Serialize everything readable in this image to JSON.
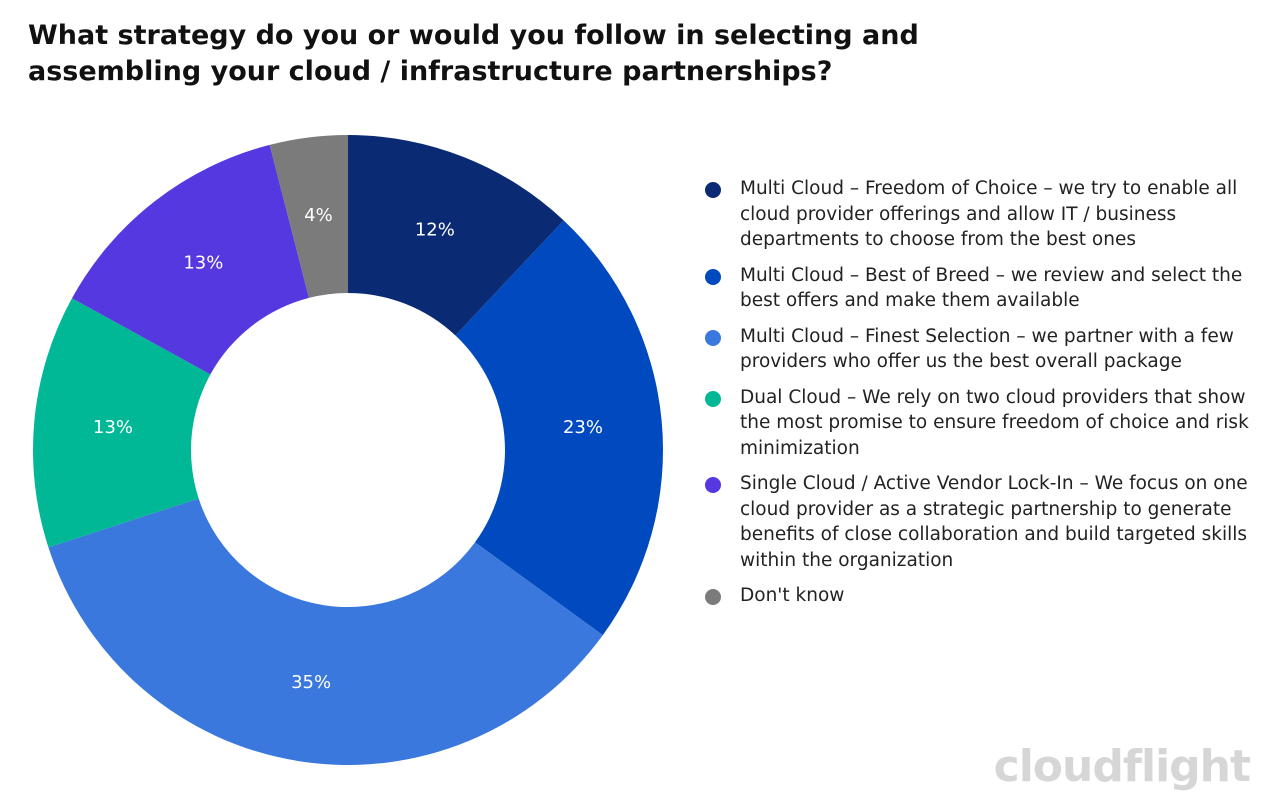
{
  "chart_data": {
    "type": "donut",
    "title": "What strategy do you or would you follow in selecting and assembling your cloud / infrastructure partnerships?",
    "series": [
      {
        "name": "Multi Cloud – Freedom of Choice – we try to enable all cloud provider offerings and allow IT / business departments to choose from the best ones",
        "color": "#0b2a74",
        "values": [
          12
        ],
        "value_labels": [
          "12%"
        ]
      },
      {
        "name": "Multi Cloud – Best of Breed – we review and select the best offers and make them available",
        "color": "#0049bf",
        "values": [
          23
        ],
        "value_labels": [
          "23%"
        ]
      },
      {
        "name": "Multi Cloud – Finest Selection – we partner with a few providers who offer us the best overall package",
        "color": "#3a78de",
        "values": [
          35
        ],
        "value_labels": [
          "35%"
        ]
      },
      {
        "name": "Dual Cloud – We rely on two cloud providers that show the most promise to ensure freedom of choice and risk minimization",
        "color": "#00b796",
        "values": [
          13
        ],
        "value_labels": [
          "13%"
        ]
      },
      {
        "name": "Single Cloud / Active Vendor Lock-In – We focus on one cloud provider as a strategic partnership to generate benefits of close collaboration and build targeted skills within the organization",
        "color": "#5538e0",
        "values": [
          13
        ],
        "value_labels": [
          "13%"
        ]
      },
      {
        "name": "Don't know",
        "color": "#7b7b7b",
        "values": [
          4
        ],
        "value_labels": [
          "4%"
        ]
      }
    ],
    "watermark": "cloudflight"
  }
}
